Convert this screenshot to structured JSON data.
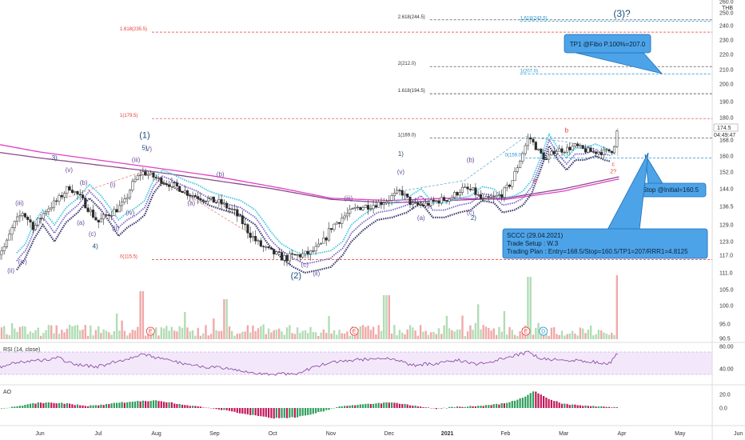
{
  "currency": "THB",
  "chart_data": {
    "type": "candlestick",
    "months": [
      "Jun",
      "Jul",
      "Aug",
      "Sep",
      "Oct",
      "Nov",
      "Dec",
      "2021",
      "Feb",
      "Mar",
      "Apr",
      "May",
      "Jun"
    ],
    "price_ticks": [
      90.5,
      95.0,
      100.0,
      105.0,
      111.0,
      117.0,
      123.0,
      129.0,
      136.5,
      144.0,
      152.0,
      160.0,
      168.0,
      180.0,
      190.0,
      200.0,
      210.0,
      220.0,
      230.0,
      240.0,
      250.0,
      260.0
    ],
    "price_labels": [
      "90.5",
      "95.0",
      "100.0",
      "105.0",
      "111.0",
      "117.0",
      "123.0",
      "129.0",
      "136.5",
      "144.0",
      "152.0",
      "160.0",
      "168.0",
      "180.0",
      "190.0",
      "200.0",
      "210.0",
      "220.0",
      "230.0",
      "240.0",
      "250.0",
      "260.0"
    ],
    "last_price_label": "174.5",
    "countdown_label": "04:49:47",
    "fib_levels": [
      {
        "label": "2.618(244.5)",
        "value": 244.5,
        "color": "#333333"
      },
      {
        "label": "1.618(243.5)",
        "value": 243.5,
        "color": "#2196d3"
      },
      {
        "label": "1.618(235.5)",
        "value": 235.5,
        "color": "#e53935"
      },
      {
        "label": "2(212.0)",
        "value": 212.0,
        "color": "#333333"
      },
      {
        "label": "1(207.0)",
        "value": 207.0,
        "color": "#2196d3"
      },
      {
        "label": "1.618(194.5)",
        "value": 194.5,
        "color": "#333333"
      },
      {
        "label": "1(179.5)",
        "value": 179.5,
        "color": "#e53935"
      },
      {
        "label": "1(169.0)",
        "value": 169.0,
        "color": "#333333"
      },
      {
        "label": "0(159.0)",
        "value": 159.0,
        "color": "#2196d3"
      },
      {
        "label": "0(115.5)",
        "value": 115.5,
        "color": "#e53935"
      }
    ],
    "wave_labels": [
      {
        "text": "(3)?",
        "month": 10.0,
        "price": 247,
        "color": "#1a4f7a",
        "size": 12
      },
      {
        "text": "(1)",
        "month": 1.8,
        "price": 169,
        "color": "#1a4f7a",
        "size": 11
      },
      {
        "text": "(2)",
        "month": 4.4,
        "price": 109,
        "color": "#1a4f7a",
        "size": 11
      },
      {
        "text": "5)",
        "month": 1.8,
        "price": 163,
        "color": "#1a4f7a",
        "size": 8
      },
      {
        "text": "V)",
        "month": 1.87,
        "price": 162.5,
        "color": "#6a4c9c",
        "size": 8
      },
      {
        "text": "3)",
        "month": 0.25,
        "price": 158,
        "color": "#1a4f7a",
        "size": 8
      },
      {
        "text": "4)",
        "month": 0.95,
        "price": 120,
        "color": "#1a4f7a",
        "size": 8
      },
      {
        "text": "1)",
        "month": 6.2,
        "price": 160,
        "color": "#1a4f7a",
        "size": 8
      },
      {
        "text": "2)",
        "month": 7.45,
        "price": 131,
        "color": "#1a4f7a",
        "size": 8
      },
      {
        "text": "(iii)",
        "month": 1.65,
        "price": 157,
        "color": "#6a4c9c",
        "size": 8
      },
      {
        "text": "(v)",
        "month": 0.5,
        "price": 152,
        "color": "#6a4c9c",
        "size": 8
      },
      {
        "text": "(iii)",
        "month": -0.35,
        "price": 137,
        "color": "#6a4c9c",
        "size": 8
      },
      {
        "text": "(iv)",
        "month": -0.3,
        "price": 114,
        "color": "#6a4c9c",
        "size": 8
      },
      {
        "text": "(ii)",
        "month": -0.5,
        "price": 111,
        "color": "#6a4c9c",
        "size": 8
      },
      {
        "text": "(b)",
        "month": 0.75,
        "price": 146,
        "color": "#6a4c9c",
        "size": 8
      },
      {
        "text": "(a)",
        "month": 0.7,
        "price": 129,
        "color": "#6a4c9c",
        "size": 8
      },
      {
        "text": "(c)",
        "month": 0.9,
        "price": 125,
        "color": "#6a4c9c",
        "size": 8
      },
      {
        "text": "(i)",
        "month": 1.25,
        "price": 145,
        "color": "#6a4c9c",
        "size": 8
      },
      {
        "text": "(ii)",
        "month": 1.3,
        "price": 127,
        "color": "#6a4c9c",
        "size": 8
      },
      {
        "text": "(iv)",
        "month": 1.55,
        "price": 133,
        "color": "#6a4c9c",
        "size": 8
      },
      {
        "text": "(b)",
        "month": 3.1,
        "price": 150,
        "color": "#6a4c9c",
        "size": 8
      },
      {
        "text": "(a)",
        "month": 2.6,
        "price": 137,
        "color": "#6a4c9c",
        "size": 8
      },
      {
        "text": "(c)",
        "month": 4.55,
        "price": 113,
        "color": "#6a4c9c",
        "size": 8
      },
      {
        "text": "(ii)",
        "month": 4.75,
        "price": 110,
        "color": "#6a4c9c",
        "size": 8
      },
      {
        "text": "(iii)",
        "month": 5.3,
        "price": 139,
        "color": "#6a4c9c",
        "size": 8
      },
      {
        "text": "(v)",
        "month": 6.2,
        "price": 151,
        "color": "#6a4c9c",
        "size": 8
      },
      {
        "text": "(a)",
        "month": 6.55,
        "price": 131,
        "color": "#6a4c9c",
        "size": 8
      },
      {
        "text": "(b)",
        "month": 7.4,
        "price": 157,
        "color": "#6a4c9c",
        "size": 8
      },
      {
        "text": "(c)",
        "month": 7.4,
        "price": 133,
        "color": "#6a4c9c",
        "size": 8
      },
      {
        "text": "b",
        "month": 9.05,
        "price": 172,
        "color": "#e53935",
        "size": 8
      },
      {
        "text": "a",
        "month": 8.5,
        "price": 147,
        "color": "#e53935",
        "size": 8
      },
      {
        "text": "c",
        "month": 9.85,
        "price": 155,
        "color": "#e53935",
        "size": 7
      },
      {
        "text": "2?",
        "month": 9.85,
        "price": 151.5,
        "color": "#e53935",
        "size": 7
      }
    ],
    "callouts": {
      "tp": "TP1 @Fibo P.100%=207.0",
      "stop": "Stop @Initial=160.5",
      "plan": [
        "SCCC (29.04.2021)",
        "Trade Setup : W.3",
        "Trading Plan : Entry=168.5/Stop=160.5/TP1=207/RRR1=4.8125"
      ]
    },
    "event_markers": [
      {
        "text": "E",
        "month": 1.9,
        "type": "earnings"
      },
      {
        "text": "E",
        "month": 5.4,
        "type": "earnings"
      },
      {
        "text": "E",
        "month": 8.35,
        "type": "earnings"
      },
      {
        "text": "D",
        "month": 8.65,
        "type": "dividend"
      }
    ],
    "close_path": [
      [
        -0.75,
        117
      ],
      [
        -0.6,
        121
      ],
      [
        -0.45,
        129
      ],
      [
        -0.3,
        134
      ],
      [
        -0.1,
        128
      ],
      [
        0.1,
        135
      ],
      [
        0.3,
        139
      ],
      [
        0.5,
        145
      ],
      [
        0.7,
        140
      ],
      [
        0.85,
        135
      ],
      [
        1.0,
        130
      ],
      [
        1.15,
        133
      ],
      [
        1.3,
        135
      ],
      [
        1.45,
        138
      ],
      [
        1.6,
        147
      ],
      [
        1.75,
        152
      ],
      [
        1.85,
        151
      ],
      [
        2.0,
        149
      ],
      [
        2.15,
        147
      ],
      [
        2.35,
        145
      ],
      [
        2.55,
        142
      ],
      [
        2.8,
        140
      ],
      [
        3.1,
        138
      ],
      [
        3.35,
        134
      ],
      [
        3.6,
        126
      ],
      [
        3.8,
        121
      ],
      [
        4.0,
        118
      ],
      [
        4.2,
        116
      ],
      [
        4.45,
        117
      ],
      [
        4.65,
        118
      ],
      [
        4.85,
        122
      ],
      [
        5.0,
        128
      ],
      [
        5.2,
        132
      ],
      [
        5.45,
        136
      ],
      [
        5.7,
        137
      ],
      [
        5.95,
        139
      ],
      [
        6.2,
        143
      ],
      [
        6.4,
        137
      ],
      [
        6.6,
        137
      ],
      [
        6.85,
        139
      ],
      [
        7.05,
        140
      ],
      [
        7.25,
        144
      ],
      [
        7.45,
        143
      ],
      [
        7.6,
        139
      ],
      [
        7.8,
        140
      ],
      [
        7.95,
        142
      ],
      [
        8.1,
        147
      ],
      [
        8.25,
        158
      ],
      [
        8.4,
        170
      ],
      [
        8.55,
        163
      ],
      [
        8.7,
        158
      ],
      [
        8.85,
        163
      ],
      [
        9.0,
        163
      ],
      [
        9.2,
        165
      ],
      [
        9.35,
        163
      ],
      [
        9.5,
        162
      ],
      [
        9.7,
        162
      ],
      [
        9.85,
        163
      ],
      [
        9.93,
        174.5
      ]
    ],
    "ma_pink": [
      [
        -0.75,
        166
      ],
      [
        0,
        162
      ],
      [
        1,
        158
      ],
      [
        2,
        154
      ],
      [
        3,
        150
      ],
      [
        4,
        145
      ],
      [
        5,
        140
      ],
      [
        6,
        139
      ],
      [
        7,
        140
      ],
      [
        8,
        139.5
      ],
      [
        9,
        143
      ],
      [
        10,
        149
      ]
    ],
    "ma_purple": [
      [
        -0.75,
        162
      ],
      [
        0,
        159
      ],
      [
        1,
        155.5
      ],
      [
        2,
        152
      ],
      [
        3,
        148
      ],
      [
        4,
        144
      ],
      [
        5,
        139.5
      ],
      [
        6,
        138
      ],
      [
        7,
        139
      ],
      [
        8,
        140
      ],
      [
        9,
        144
      ],
      [
        10,
        150
      ]
    ],
    "rsi": {
      "title": "RSI (14, close)",
      "labels": [
        "80.00",
        "40.00"
      ],
      "upper": 70,
      "lower": 30,
      "values": [
        [
          -0.75,
          41
        ],
        [
          -0.4,
          52
        ],
        [
          0,
          55
        ],
        [
          0.3,
          60
        ],
        [
          0.6,
          47
        ],
        [
          1.0,
          44
        ],
        [
          1.4,
          55
        ],
        [
          1.75,
          66
        ],
        [
          2.1,
          57
        ],
        [
          2.6,
          47
        ],
        [
          3.2,
          40
        ],
        [
          3.6,
          33
        ],
        [
          4.0,
          30
        ],
        [
          4.4,
          32
        ],
        [
          4.8,
          46
        ],
        [
          5.2,
          54
        ],
        [
          5.6,
          57
        ],
        [
          6.0,
          60
        ],
        [
          6.4,
          46
        ],
        [
          6.8,
          50
        ],
        [
          7.2,
          56
        ],
        [
          7.5,
          47
        ],
        [
          7.9,
          57
        ],
        [
          8.2,
          64
        ],
        [
          8.4,
          70
        ],
        [
          8.6,
          58
        ],
        [
          9.0,
          56
        ],
        [
          9.4,
          53
        ],
        [
          9.8,
          50
        ],
        [
          9.93,
          68
        ]
      ]
    },
    "ao": {
      "title": "AO",
      "labels": [
        "20.0",
        "0.0"
      ],
      "values": [
        [
          -0.75,
          -2
        ],
        [
          -0.3,
          4
        ],
        [
          0,
          8
        ],
        [
          0.4,
          7
        ],
        [
          0.8,
          3
        ],
        [
          1.2,
          6
        ],
        [
          1.6,
          10
        ],
        [
          2.0,
          11
        ],
        [
          2.4,
          6
        ],
        [
          2.8,
          1
        ],
        [
          3.2,
          -4
        ],
        [
          3.6,
          -10
        ],
        [
          4.0,
          -15
        ],
        [
          4.4,
          -14
        ],
        [
          4.8,
          -6
        ],
        [
          5.2,
          3
        ],
        [
          5.6,
          6
        ],
        [
          6.0,
          8
        ],
        [
          6.4,
          4
        ],
        [
          6.8,
          -1
        ],
        [
          7.2,
          2
        ],
        [
          7.6,
          3
        ],
        [
          8.0,
          7
        ],
        [
          8.3,
          15
        ],
        [
          8.5,
          25
        ],
        [
          8.7,
          15
        ],
        [
          9.0,
          6
        ],
        [
          9.4,
          3
        ],
        [
          9.8,
          1
        ],
        [
          9.93,
          1
        ]
      ]
    }
  }
}
